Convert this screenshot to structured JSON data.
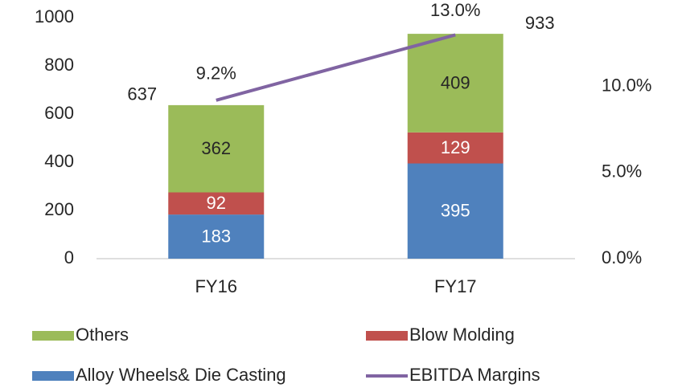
{
  "chart_data": {
    "type": "bar",
    "categories": [
      "FY16",
      "FY17"
    ],
    "series": [
      {
        "name": "Alloy Wheels& Die Casting",
        "color": "#4f81bd",
        "values": [
          183,
          395
        ]
      },
      {
        "name": "Blow Molding",
        "color": "#c0504d",
        "values": [
          92,
          129
        ]
      },
      {
        "name": "Others",
        "color": "#9bbb59",
        "values": [
          362,
          409
        ]
      },
      {
        "name": "EBITDA Margins",
        "color": "#8064a2",
        "type": "line",
        "axis": "y2",
        "values": [
          9.2,
          13.0
        ],
        "value_labels": [
          "9.2%",
          "13.0%"
        ]
      }
    ],
    "totals": [
      637,
      933
    ],
    "ylim": [
      0,
      1000
    ],
    "yticks": [
      0,
      200,
      400,
      600,
      800,
      1000
    ],
    "y2lim": [
      0,
      14
    ],
    "y2ticks": [
      {
        "value": 0,
        "label": "0.0%"
      },
      {
        "value": 5,
        "label": "5.0%"
      },
      {
        "value": 10,
        "label": "10.0%"
      }
    ],
    "grid": false
  }
}
